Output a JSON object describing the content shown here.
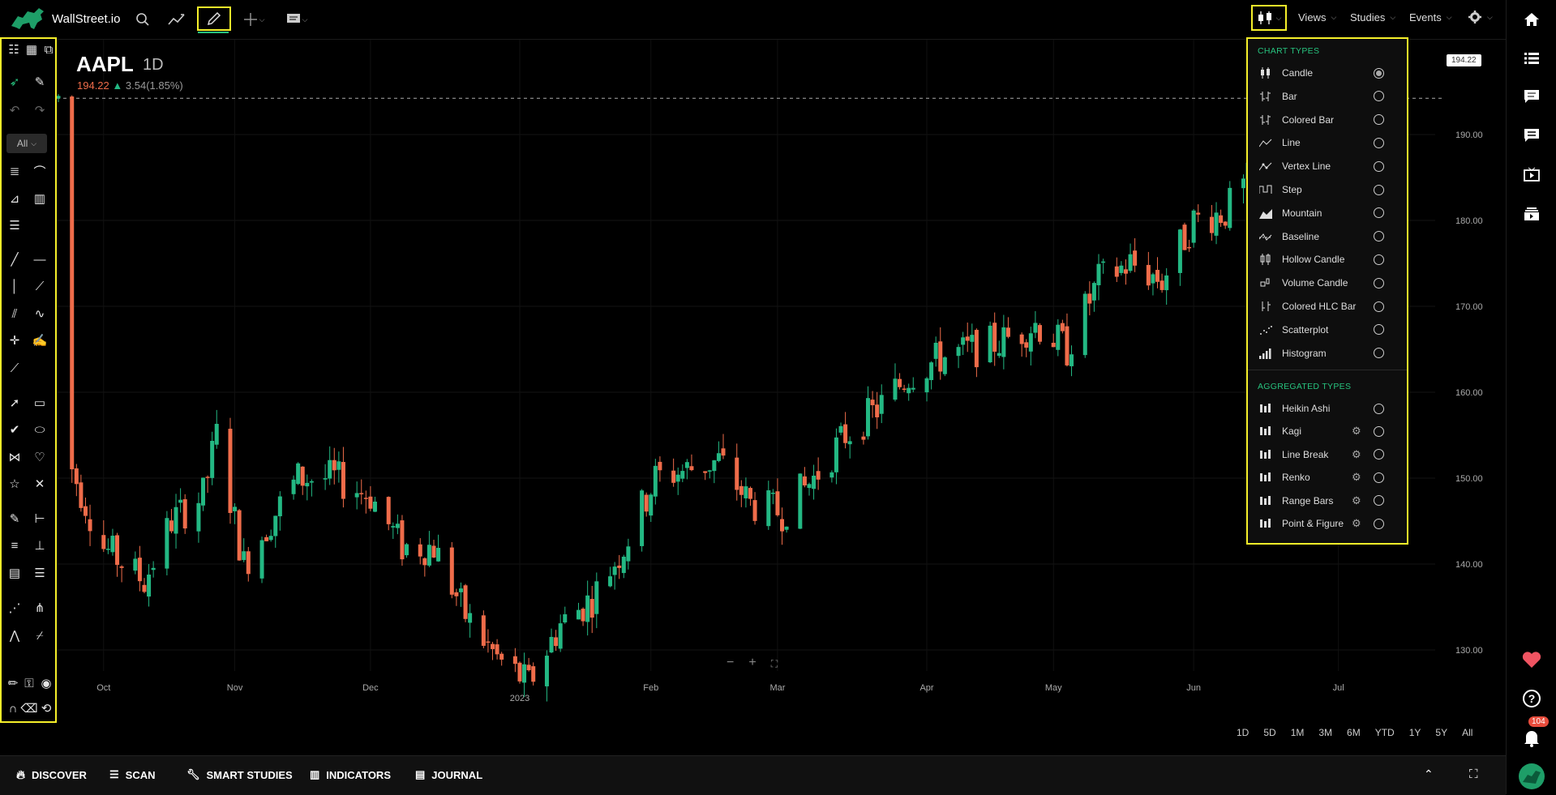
{
  "app": {
    "name": "WallStreet.io"
  },
  "toolbar": {
    "menus": [
      "Views",
      "Studies",
      "Events"
    ]
  },
  "left_panel": {
    "filter_value": "All"
  },
  "chart": {
    "symbol": "AAPL",
    "interval": "1D",
    "last": "194.22",
    "change": "3.54(1.85%)",
    "price_tag": "194.22",
    "y_ticks": [
      "190.00",
      "180.00",
      "170.00",
      "160.00",
      "150.00",
      "140.00",
      "130.00"
    ],
    "x_ticks": [
      "Oct",
      "Nov",
      "Dec",
      "2023",
      "Feb",
      "Mar",
      "Apr",
      "May",
      "Jun",
      "Jul"
    ],
    "colors": {
      "up": "#23b883",
      "down": "#ef6c4a",
      "accent": "#27c27e",
      "highlight": "#f5ef2a"
    }
  },
  "chart_data": {
    "type": "candlestick",
    "symbol": "AAPL",
    "interval": "1D",
    "ylim": [
      125,
      197
    ],
    "close_path": [
      {
        "x": "2022-09-26",
        "y": 151
      },
      {
        "x": "2022-10-03",
        "y": 142
      },
      {
        "x": "2022-10-12",
        "y": 138
      },
      {
        "x": "2022-10-18",
        "y": 145
      },
      {
        "x": "2022-10-25",
        "y": 148
      },
      {
        "x": "2022-10-28",
        "y": 155
      },
      {
        "x": "2022-11-03",
        "y": 140
      },
      {
        "x": "2022-11-10",
        "y": 146
      },
      {
        "x": "2022-11-15",
        "y": 150
      },
      {
        "x": "2022-11-23",
        "y": 150
      },
      {
        "x": "2022-12-01",
        "y": 148
      },
      {
        "x": "2022-12-08",
        "y": 142
      },
      {
        "x": "2022-12-15",
        "y": 142
      },
      {
        "x": "2022-12-22",
        "y": 134
      },
      {
        "x": "2022-12-29",
        "y": 129
      },
      {
        "x": "2023-01-05",
        "y": 126
      },
      {
        "x": "2023-01-12",
        "y": 133
      },
      {
        "x": "2023-01-19",
        "y": 136
      },
      {
        "x": "2023-01-26",
        "y": 142
      },
      {
        "x": "2023-02-02",
        "y": 150
      },
      {
        "x": "2023-02-09",
        "y": 151
      },
      {
        "x": "2023-02-16",
        "y": 152
      },
      {
        "x": "2023-02-23",
        "y": 147
      },
      {
        "x": "2023-03-02",
        "y": 146
      },
      {
        "x": "2023-03-09",
        "y": 150
      },
      {
        "x": "2023-03-16",
        "y": 155
      },
      {
        "x": "2023-03-23",
        "y": 158
      },
      {
        "x": "2023-03-30",
        "y": 162
      },
      {
        "x": "2023-04-06",
        "y": 164
      },
      {
        "x": "2023-04-13",
        "y": 165
      },
      {
        "x": "2023-04-20",
        "y": 166
      },
      {
        "x": "2023-04-27",
        "y": 168
      },
      {
        "x": "2023-05-04",
        "y": 165
      },
      {
        "x": "2023-05-11",
        "y": 173
      },
      {
        "x": "2023-05-18",
        "y": 175
      },
      {
        "x": "2023-05-25",
        "y": 173
      },
      {
        "x": "2023-06-01",
        "y": 180
      },
      {
        "x": "2023-06-08",
        "y": 181
      },
      {
        "x": "2023-06-15",
        "y": 186
      },
      {
        "x": "2023-06-22",
        "y": 187
      },
      {
        "x": "2023-06-29",
        "y": 189
      },
      {
        "x": "2023-07-06",
        "y": 191
      },
      {
        "x": "2023-07-14",
        "y": 194.22
      }
    ]
  },
  "ranges": [
    "1D",
    "5D",
    "1M",
    "3M",
    "6M",
    "YTD",
    "1Y",
    "5Y",
    "All"
  ],
  "bottom_bar": {
    "items": [
      "DISCOVER",
      "SCAN",
      "SMART STUDIES",
      "INDICATORS",
      "JOURNAL"
    ]
  },
  "right_bar": {
    "notification_count": "104"
  },
  "dropdown": {
    "chart_types_title": "CHART TYPES",
    "chart_types": [
      "Candle",
      "Bar",
      "Colored Bar",
      "Line",
      "Vertex Line",
      "Step",
      "Mountain",
      "Baseline",
      "Hollow Candle",
      "Volume Candle",
      "Colored HLC Bar",
      "Scatterplot",
      "Histogram"
    ],
    "selected": "Candle",
    "aggregated_title": "AGGREGATED TYPES",
    "aggregated_types": [
      "Heikin Ashi",
      "Kagi",
      "Line Break",
      "Renko",
      "Range Bars",
      "Point & Figure"
    ]
  }
}
